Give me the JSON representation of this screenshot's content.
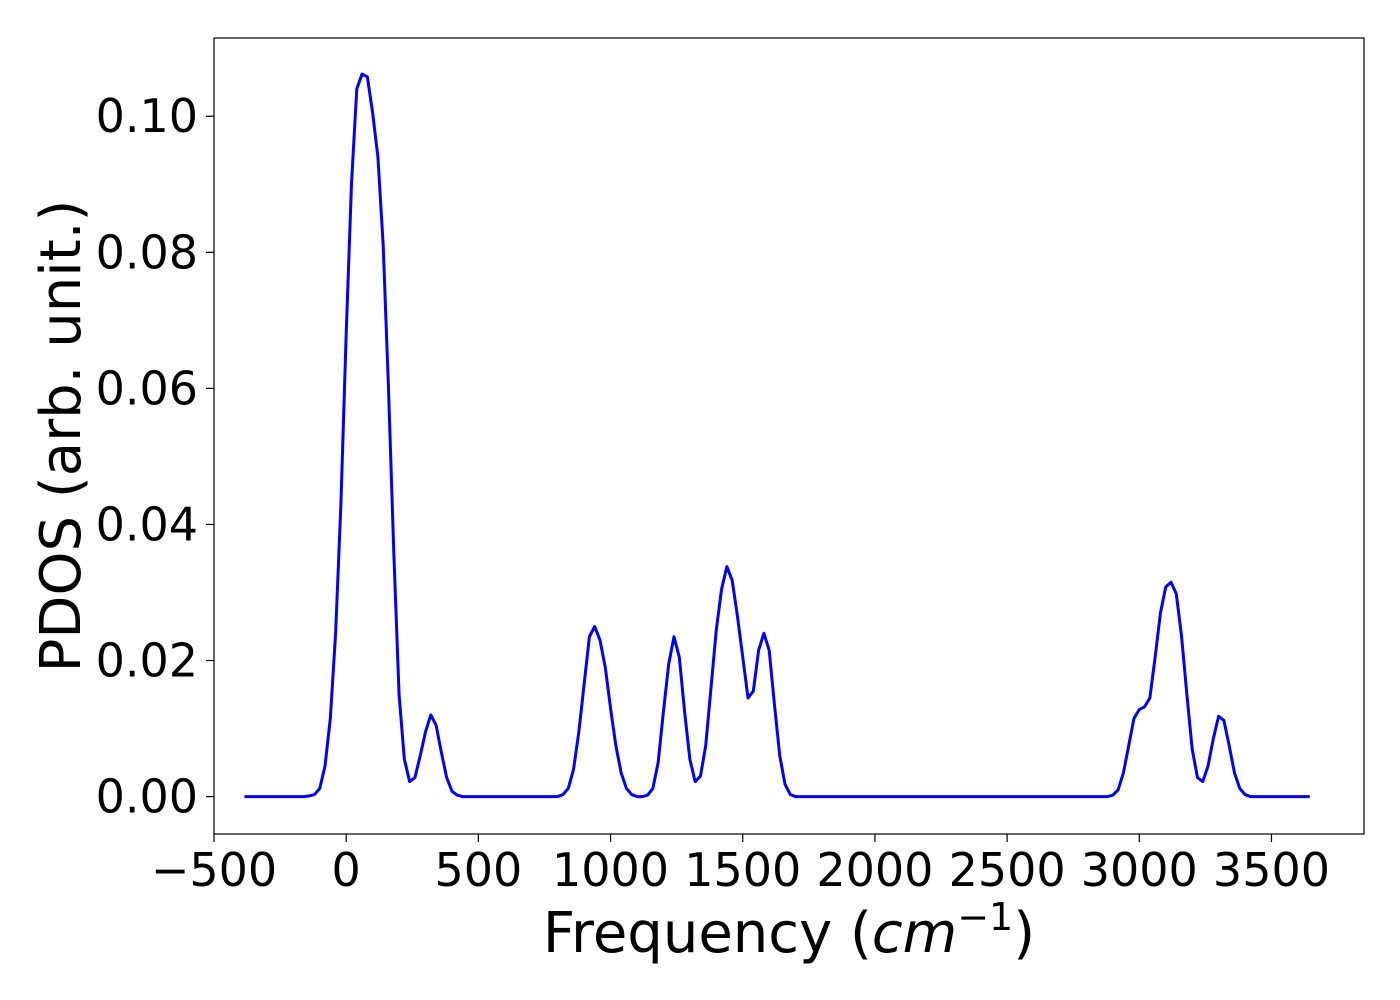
{
  "chart_data": {
    "type": "line",
    "title": "",
    "xlabel": "Frequency (",
    "xlabel_var": "cm",
    "xlabel_exp": "−1",
    "xlabel_close": ")",
    "ylabel": "PDOS (arb. unit.)",
    "xlim": [
      -500,
      3850
    ],
    "ylim": [
      -0.0055,
      0.1115
    ],
    "x_ticks": [
      -500,
      0,
      500,
      1000,
      1500,
      2000,
      2500,
      3000,
      3500
    ],
    "x_tick_labels": [
      "−500",
      "0",
      "500",
      "1000",
      "1500",
      "2000",
      "2500",
      "3000",
      "3500"
    ],
    "y_ticks": [
      0.0,
      0.02,
      0.04,
      0.06,
      0.08,
      0.1
    ],
    "y_tick_labels": [
      "0.00",
      "0.02",
      "0.04",
      "0.06",
      "0.08",
      "0.10"
    ],
    "grid": false,
    "legend": "none",
    "series": [
      {
        "color": "#0000ff",
        "x": [
          -380,
          -160,
          -140,
          -120,
          -100,
          -80,
          -60,
          -40,
          -20,
          0,
          20,
          40,
          60,
          80,
          100,
          120,
          140,
          160,
          180,
          200,
          220,
          240,
          260,
          280,
          300,
          320,
          340,
          360,
          380,
          400,
          420,
          440,
          460,
          800,
          820,
          840,
          860,
          880,
          900,
          920,
          940,
          960,
          980,
          1000,
          1020,
          1040,
          1060,
          1080,
          1100,
          1120,
          1140,
          1160,
          1180,
          1200,
          1220,
          1240,
          1260,
          1280,
          1300,
          1320,
          1340,
          1360,
          1380,
          1400,
          1420,
          1440,
          1460,
          1480,
          1500,
          1520,
          1540,
          1560,
          1580,
          1600,
          1620,
          1640,
          1660,
          1680,
          1700,
          1720,
          2880,
          2900,
          2920,
          2940,
          2960,
          2980,
          3000,
          3020,
          3040,
          3060,
          3080,
          3100,
          3120,
          3140,
          3160,
          3180,
          3200,
          3220,
          3240,
          3260,
          3280,
          3300,
          3320,
          3340,
          3360,
          3380,
          3400,
          3420,
          3440,
          3640
        ],
        "y": [
          0.0,
          0.0,
          0.0001,
          0.0003,
          0.0012,
          0.0045,
          0.0115,
          0.024,
          0.043,
          0.068,
          0.09,
          0.104,
          0.1062,
          0.1058,
          0.1005,
          0.094,
          0.081,
          0.06,
          0.036,
          0.015,
          0.0055,
          0.0022,
          0.0028,
          0.006,
          0.0095,
          0.012,
          0.0105,
          0.0065,
          0.0028,
          0.0008,
          0.0002,
          0.0,
          0.0,
          0.0,
          0.0003,
          0.0012,
          0.004,
          0.0095,
          0.0165,
          0.0235,
          0.025,
          0.023,
          0.019,
          0.013,
          0.0075,
          0.0035,
          0.0012,
          0.0003,
          0.0,
          0.0,
          0.0002,
          0.0012,
          0.005,
          0.0125,
          0.0195,
          0.0235,
          0.0205,
          0.0125,
          0.0055,
          0.0022,
          0.003,
          0.0075,
          0.016,
          0.0245,
          0.0305,
          0.0338,
          0.0318,
          0.0265,
          0.0205,
          0.0145,
          0.0155,
          0.0215,
          0.024,
          0.0215,
          0.0135,
          0.006,
          0.0018,
          0.0003,
          0.0,
          0.0,
          0.0,
          0.0002,
          0.001,
          0.0035,
          0.0075,
          0.0115,
          0.0128,
          0.0132,
          0.0145,
          0.0205,
          0.027,
          0.0308,
          0.0315,
          0.0298,
          0.0235,
          0.015,
          0.007,
          0.0028,
          0.0022,
          0.0045,
          0.0085,
          0.0118,
          0.0112,
          0.0075,
          0.0035,
          0.0012,
          0.0003,
          0.0,
          0.0,
          0.0
        ]
      }
    ]
  }
}
